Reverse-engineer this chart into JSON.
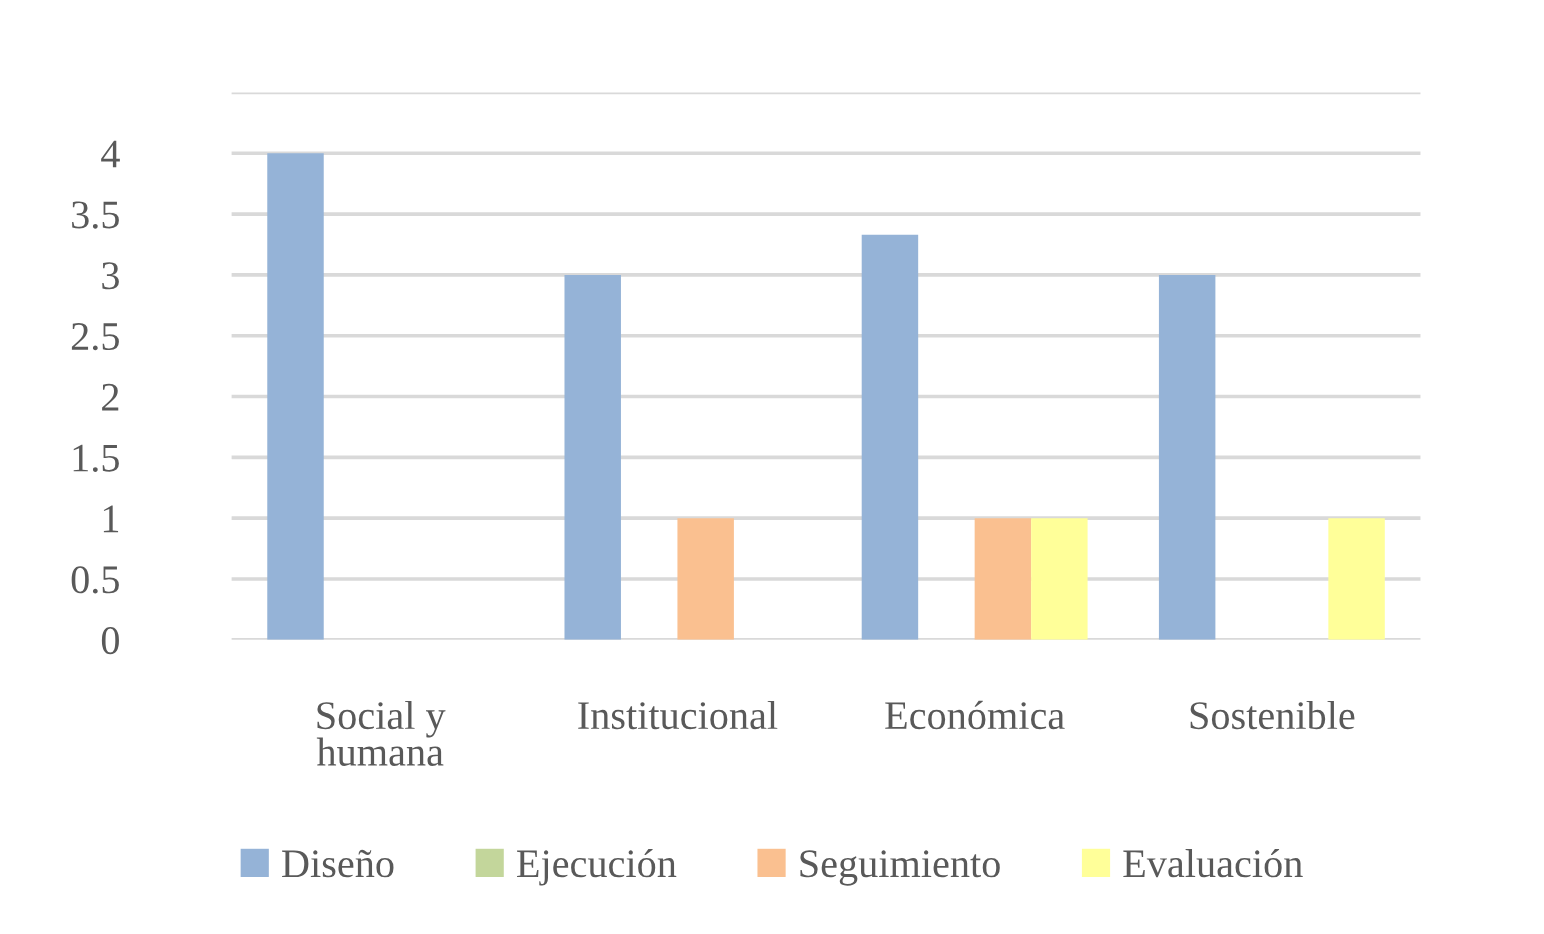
{
  "chart_data": {
    "type": "bar",
    "categories": [
      "Social y\nhumana",
      "Institucional",
      "Económica",
      "Sostenible"
    ],
    "series": [
      {
        "name": "Diseño",
        "color": "#95b3d7",
        "values": [
          4,
          3,
          3.33,
          3
        ]
      },
      {
        "name": "Ejecución",
        "color": "#c3d69b",
        "values": [
          0,
          0,
          0,
          0
        ]
      },
      {
        "name": "Seguimiento",
        "color": "#fac090",
        "values": [
          0,
          1,
          1,
          0
        ]
      },
      {
        "name": "Evaluación",
        "color": "#ffff99",
        "values": [
          0,
          0,
          1,
          1
        ]
      }
    ],
    "ylim": [
      0,
      4.5
    ],
    "yticks": [
      0,
      0.5,
      1,
      1.5,
      2,
      2.5,
      3,
      3.5,
      4,
      {
        "value": 4.5,
        "label": null
      }
    ],
    "grid": "y",
    "legend": "bottom"
  }
}
